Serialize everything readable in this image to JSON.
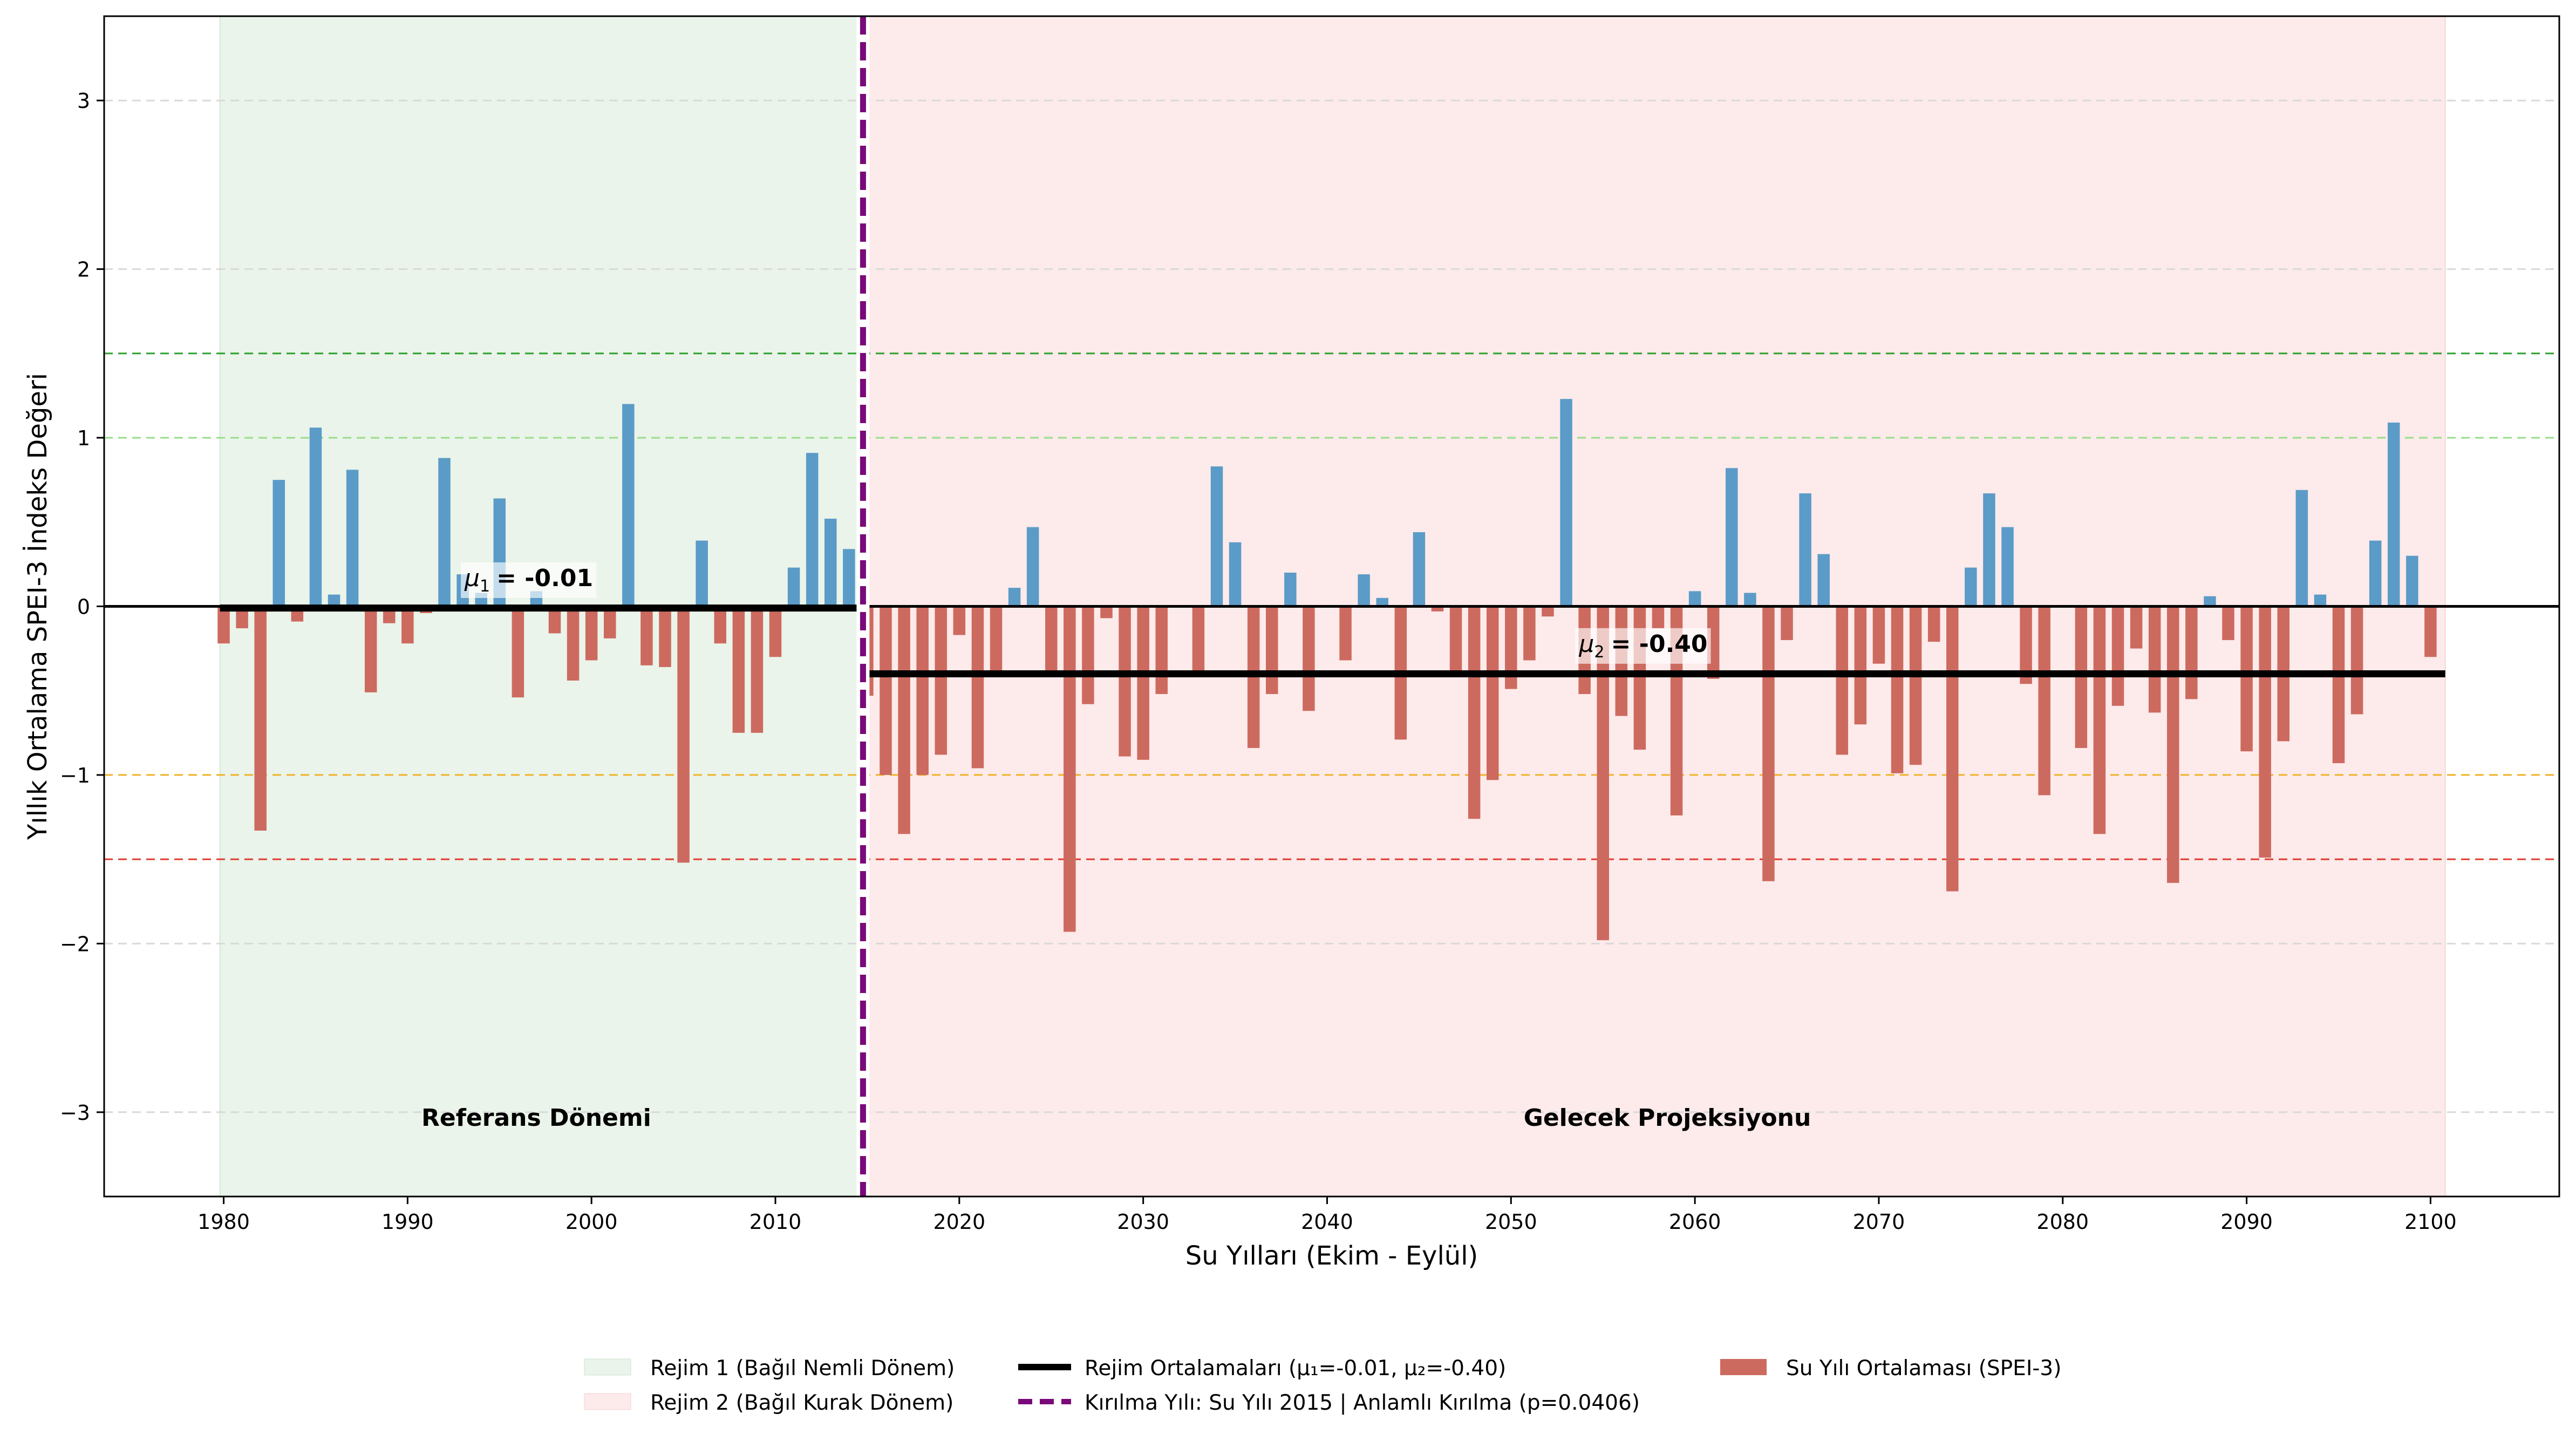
{
  "colors": {
    "positive_bar": "#5b9bc8",
    "negative_bar": "#cd6a5f",
    "regime1_fill": "#eaf4ea",
    "regime2_fill": "#fdeaea",
    "break_line": "#7a0a7a",
    "mean_line": "#000000",
    "wet_extreme": "#2ca02c",
    "wet_moderate": "#98df8a",
    "dry_moderate": "#f0b429",
    "dry_extreme": "#e03c31",
    "grid": "#d9d9d9"
  },
  "chart_data": {
    "type": "bar",
    "xlabel": "Su Yılları (Ekim - Eylül)",
    "ylabel": "Yıllık Ortalama SPEI-3 İndeks Değeri",
    "xlim": [
      1973.5,
      2107
    ],
    "ylim": [
      -3.5,
      3.5
    ],
    "x_ticks": [
      1980,
      1990,
      2000,
      2010,
      2020,
      2030,
      2040,
      2050,
      2060,
      2070,
      2080,
      2090,
      2100
    ],
    "y_ticks": [
      3,
      2,
      1,
      0,
      -1,
      -2,
      -3
    ],
    "y_tick_labels": [
      "3",
      "2",
      "1",
      "0",
      "−1",
      "−2",
      "−3"
    ],
    "grid": "horizontal dashed",
    "threshold_lines": [
      1.5,
      1.0,
      -1.0,
      -1.5
    ],
    "regimes": [
      {
        "label": "Rejim 1 (Bağıl Nemli Dönem)",
        "start": 1979.8,
        "end": 2014.9,
        "mean": -0.01,
        "mean_label": "= -0.01",
        "mean_symbol": "μ",
        "mean_sub": "1",
        "period_label": "Referans Dönemi"
      },
      {
        "label": "Rejim 2 (Bağıl Kurak Dönem)",
        "start": 2014.9,
        "end": 2100.8,
        "mean": -0.4,
        "mean_label": "= -0.40",
        "mean_symbol": "μ",
        "mean_sub": "2",
        "period_label": "Gelecek Projeksiyonu"
      }
    ],
    "break_year": 2015,
    "legend": {
      "placement": "bottom-center",
      "entries": [
        "Rejim 1 (Bağıl Nemli Dönem)",
        "Rejim 2 (Bağıl Kurak Dönem)",
        "Rejim Ortalamaları (μ₁=-0.01, μ₂=-0.40)",
        "Kırılma Yılı: Su Yılı 2015 | Anlamlı Kırılma (p=0.0406)",
        "Su Yılı Ortalaması (SPEI-3)"
      ]
    },
    "series": [
      {
        "name": "Su Yılı Ortalaması (SPEI-3)",
        "x": [
          1980,
          1981,
          1982,
          1983,
          1984,
          1985,
          1986,
          1987,
          1988,
          1989,
          1990,
          1991,
          1992,
          1993,
          1994,
          1995,
          1996,
          1997,
          1998,
          1999,
          2000,
          2001,
          2002,
          2003,
          2004,
          2005,
          2006,
          2007,
          2008,
          2009,
          2010,
          2011,
          2012,
          2013,
          2014,
          2015,
          2016,
          2017,
          2018,
          2019,
          2020,
          2021,
          2022,
          2023,
          2024,
          2025,
          2026,
          2027,
          2028,
          2029,
          2030,
          2031,
          2032,
          2033,
          2034,
          2035,
          2036,
          2037,
          2038,
          2039,
          2040,
          2041,
          2042,
          2043,
          2044,
          2045,
          2046,
          2047,
          2048,
          2049,
          2050,
          2051,
          2052,
          2053,
          2054,
          2055,
          2056,
          2057,
          2058,
          2059,
          2060,
          2061,
          2062,
          2063,
          2064,
          2065,
          2066,
          2067,
          2068,
          2069,
          2070,
          2071,
          2072,
          2073,
          2074,
          2075,
          2076,
          2077,
          2078,
          2079,
          2080,
          2081,
          2082,
          2083,
          2084,
          2085,
          2086,
          2087,
          2088,
          2089,
          2090,
          2091,
          2092,
          2093,
          2094,
          2095,
          2096,
          2097,
          2098,
          2099,
          2100
        ],
        "values": [
          -0.22,
          -0.13,
          -1.33,
          0.75,
          -0.09,
          1.06,
          0.07,
          0.81,
          -0.51,
          -0.1,
          -0.22,
          -0.04,
          0.88,
          0.19,
          0.08,
          0.64,
          -0.54,
          0.09,
          -0.16,
          -0.44,
          -0.32,
          -0.19,
          1.2,
          -0.35,
          -0.36,
          -1.52,
          0.39,
          -0.22,
          -0.75,
          -0.75,
          -0.3,
          0.23,
          0.91,
          0.52,
          0.34,
          -0.53,
          -1.0,
          -1.35,
          -1.0,
          -0.88,
          -0.17,
          -0.96,
          -0.41,
          0.11,
          0.47,
          -0.41,
          -1.93,
          -0.58,
          -0.07,
          -0.89,
          -0.91,
          -0.52,
          0.0,
          -0.4,
          0.83,
          0.38,
          -0.84,
          -0.52,
          0.2,
          -0.62,
          0.0,
          -0.32,
          0.19,
          0.05,
          -0.79,
          0.44,
          -0.03,
          -0.4,
          -1.26,
          -1.03,
          -0.49,
          -0.32,
          -0.06,
          1.23,
          -0.52,
          -1.98,
          -0.65,
          -0.85,
          -0.13,
          -1.24,
          0.09,
          -0.43,
          0.82,
          0.08,
          -1.63,
          -0.2,
          0.67,
          0.31,
          -0.88,
          -0.7,
          -0.34,
          -0.99,
          -0.94,
          -0.21,
          -1.69,
          0.23,
          0.67,
          0.47,
          -0.46,
          -1.12,
          0.0,
          -0.84,
          -1.35,
          -0.59,
          -0.25,
          -0.63,
          -1.64,
          -0.55,
          0.06,
          -0.2,
          -0.86,
          -1.49,
          -0.8,
          0.69,
          0.07,
          -0.93,
          -0.64,
          0.39,
          1.09,
          0.3,
          -0.3
        ]
      }
    ]
  }
}
